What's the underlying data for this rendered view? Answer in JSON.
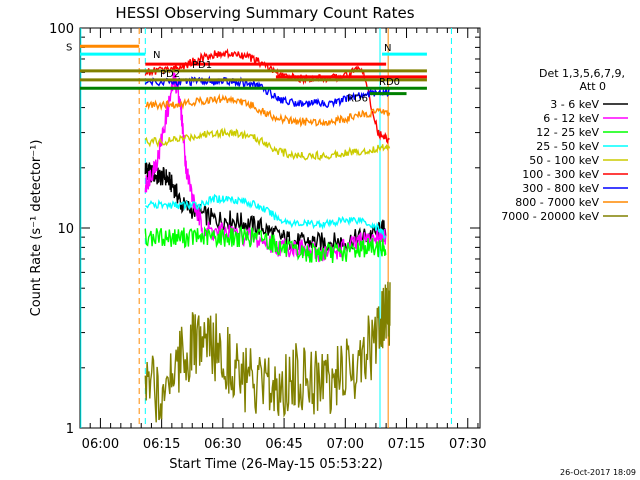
{
  "chart_data": {
    "type": "line",
    "title": "HESSI Observing Summary Count Rates",
    "xlabel": "Start Time (26-May-15 05:53:22)",
    "ylabel": "Count Rate (s⁻¹ detector⁻¹)",
    "y_scale": "log",
    "ylim": [
      1,
      100
    ],
    "xlim_minutes": [
      355,
      453
    ],
    "x_ticks": [
      "06:00",
      "06:15",
      "06:30",
      "06:45",
      "07:00",
      "07:15",
      "07:30"
    ],
    "y_ticks": [
      "1",
      "10",
      "100"
    ],
    "legend_title": [
      "Det 1,3,5,6,7,9,",
      "Att 0"
    ],
    "timestamp": "26-Oct-2017 18:09",
    "series": [
      {
        "name": "3 - 6 keV",
        "color": "#000000",
        "x": [
          371,
          372,
          374,
          376,
          378,
          380,
          384,
          388,
          392,
          396,
          400,
          404,
          408,
          412,
          416,
          420,
          424,
          428,
          430
        ],
        "y": [
          20,
          19,
          18,
          18,
          16,
          13,
          12,
          11,
          11,
          10.5,
          10,
          9,
          8.5,
          8.5,
          8.5,
          8.5,
          9,
          9.5,
          10
        ]
      },
      {
        "name": "6 - 12 keV",
        "color": "#ff00ff",
        "x": [
          371,
          372,
          374,
          376,
          378,
          379,
          380,
          381,
          383,
          385,
          388,
          392,
          396,
          400,
          404,
          408,
          412,
          416,
          420,
          424,
          428,
          430
        ],
        "y": [
          16,
          18,
          22,
          35,
          55,
          50,
          35,
          20,
          13,
          10,
          9.5,
          9.5,
          9,
          8.5,
          8,
          8,
          7.5,
          7.5,
          8,
          8.5,
          9,
          9
        ]
      },
      {
        "name": "12 - 25 keV",
        "color": "#00ff00",
        "x": [
          371,
          376,
          380,
          384,
          388,
          392,
          396,
          400,
          404,
          408,
          412,
          416,
          420,
          424,
          428,
          430
        ],
        "y": [
          9,
          9,
          9,
          9,
          9,
          9,
          9,
          9,
          8,
          7.5,
          7.5,
          7.5,
          7.5,
          8,
          8,
          8
        ]
      },
      {
        "name": "25 - 50 keV",
        "color": "#00ffff",
        "x": [
          371,
          376,
          380,
          384,
          388,
          392,
          396,
          400,
          404,
          408,
          412,
          416,
          420,
          424,
          428,
          430
        ],
        "y": [
          13,
          13,
          13,
          13,
          14,
          14,
          13.5,
          12.5,
          11,
          10.5,
          10.5,
          10.5,
          11,
          11,
          10,
          9
        ]
      },
      {
        "name": "50 - 100 keV",
        "color": "#cccc00",
        "x": [
          371,
          376,
          380,
          384,
          388,
          392,
          396,
          400,
          404,
          408,
          412,
          416,
          420,
          424,
          428,
          431
        ],
        "y": [
          27,
          27,
          28,
          29,
          30,
          30,
          29,
          27,
          24,
          23,
          23,
          23,
          24,
          24,
          25,
          26
        ]
      },
      {
        "name": "100 - 300 keV",
        "color": "#ff0000",
        "x": [
          371,
          376,
          380,
          384,
          388,
          392,
          396,
          400,
          404,
          408,
          412,
          416,
          420,
          424,
          428,
          431
        ],
        "y": [
          60,
          62,
          64,
          70,
          74,
          74,
          72,
          66,
          58,
          56,
          56,
          56,
          58,
          64,
          30,
          27
        ]
      },
      {
        "name": "300 - 800 keV",
        "color": "#0000ff",
        "x": [
          371,
          376,
          380,
          384,
          388,
          392,
          396,
          400,
          404,
          408,
          412,
          416,
          420,
          424,
          428,
          431
        ],
        "y": [
          54,
          54,
          54,
          54,
          54,
          54,
          53,
          50,
          44,
          42,
          42,
          42,
          44,
          46,
          48,
          48
        ]
      },
      {
        "name": "800 - 7000 keV",
        "color": "#ff8800",
        "x": [
          371,
          376,
          380,
          384,
          388,
          392,
          396,
          400,
          404,
          408,
          412,
          416,
          420,
          424,
          428,
          431
        ],
        "y": [
          41,
          41,
          42,
          43,
          44,
          44,
          42,
          38,
          35,
          34,
          34,
          34,
          35,
          37,
          38,
          38
        ]
      },
      {
        "name": "7000 - 20000 keV",
        "color": "#808000",
        "x": [
          371,
          375,
          379,
          383,
          387,
          391,
          395,
          399,
          403,
          407,
          411,
          415,
          419,
          423,
          427,
          430,
          431
        ],
        "y": [
          1.5,
          1.6,
          2.2,
          2.6,
          2.6,
          2.3,
          1.8,
          1.5,
          1.6,
          1.8,
          1.8,
          1.7,
          1.8,
          2.1,
          2.7,
          3.6,
          3.8
        ]
      }
    ],
    "flag_lines": [
      {
        "label": "S",
        "color": "#ff8800",
        "x1": 355,
        "x2": 369.5,
        "y": 81
      },
      {
        "label": "N",
        "color": "#00ffff",
        "x1": 355,
        "x2": 371,
        "y": 74
      },
      {
        "label": "N",
        "color": "#00ffff",
        "x1": 429,
        "x2": 440,
        "y": 74
      },
      {
        "label": "",
        "color": "#ff0000",
        "x1": 371,
        "x2": 430,
        "y": 66
      },
      {
        "label": "PD1",
        "color": "#808000",
        "x1": 355,
        "x2": 440,
        "y": 61
      },
      {
        "label": "",
        "color": "#ff0000",
        "x1": 403,
        "x2": 440,
        "y": 57
      },
      {
        "label": "PD2",
        "color": "#808000",
        "x1": 355,
        "x2": 440,
        "y": 55
      },
      {
        "label": "RD0",
        "color": "#008000",
        "x1": 355,
        "x2": 440,
        "y": 50
      },
      {
        "label": "RD6",
        "color": "#008000",
        "x1": 426,
        "x2": 435,
        "y": 47
      }
    ],
    "vlines": [
      {
        "x": 355.2,
        "color": "#00ffff",
        "style": "solid"
      },
      {
        "x": 369.5,
        "color": "#ff8800",
        "style": "dashed"
      },
      {
        "x": 371.0,
        "color": "#00ffff",
        "style": "dashed"
      },
      {
        "x": 428.5,
        "color": "#00ffff",
        "style": "solid"
      },
      {
        "x": 430.5,
        "color": "#ff8800",
        "style": "solid"
      },
      {
        "x": 446.0,
        "color": "#00ffff",
        "style": "dashed"
      }
    ]
  }
}
